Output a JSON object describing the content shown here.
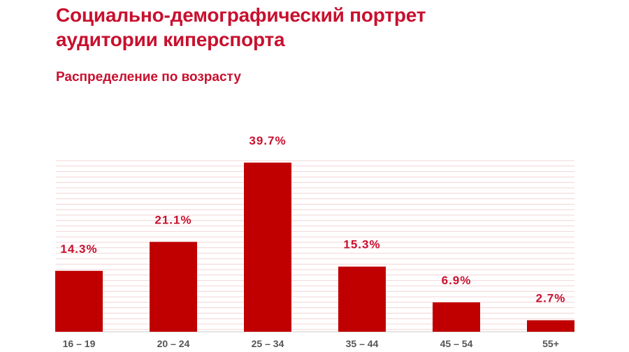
{
  "title_line1": "Социально-демографический портрет",
  "title_line2": "аудитории киперспорта",
  "subtitle": "Распределение по возрасту",
  "colors": {
    "accent": "#c8102e",
    "bar": "#c00000",
    "grid": "#f3d4d4",
    "baseline": "#c8c8c8",
    "tick_text": "#555555"
  },
  "chart_data": {
    "type": "bar",
    "title": "",
    "subtitle": "Распределение по возрасту",
    "categories": [
      "16 – 19",
      "20 – 24",
      "25 – 34",
      "35 – 44",
      "45 – 54",
      "55+"
    ],
    "values": [
      14.3,
      21.1,
      39.7,
      15.3,
      6.9,
      2.7
    ],
    "value_labels": [
      "14.3%",
      "21.1%",
      "39.7%",
      "15.3%",
      "6.9%",
      "2.7%"
    ],
    "xlabel": "",
    "ylabel": "",
    "ylim": [
      0,
      45
    ],
    "grid": true,
    "legend": "none"
  }
}
